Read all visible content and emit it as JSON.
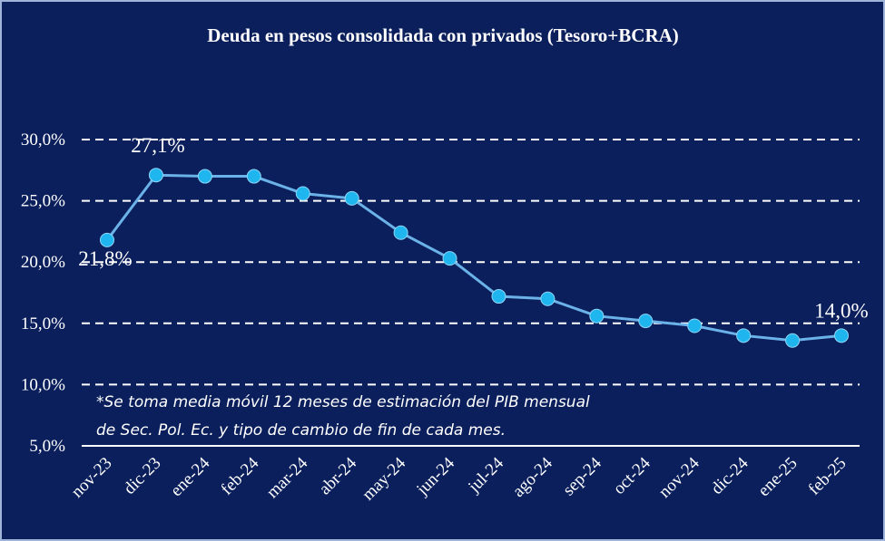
{
  "chart_data": {
    "type": "line",
    "title": "Deuda en pesos consolidada con privados (Tesoro+BCRA)",
    "categories": [
      "nov-23",
      "dic-23",
      "ene-24",
      "feb-24",
      "mar-24",
      "abr-24",
      "may-24",
      "jun-24",
      "jul-24",
      "ago-24",
      "sep-24",
      "oct-24",
      "nov-24",
      "dic-24",
      "ene-25",
      "feb-25"
    ],
    "series": [
      {
        "values": [
          21.8,
          27.1,
          27.0,
          27.0,
          25.6,
          25.2,
          22.4,
          20.3,
          17.2,
          17.0,
          15.6,
          15.2,
          14.8,
          14.0,
          13.6,
          14.0
        ]
      }
    ],
    "ylim": [
      5,
      30
    ],
    "yticks": [
      "5,0%",
      "10,0%",
      "15,0%",
      "20,0%",
      "25,0%",
      "30,0%"
    ],
    "data_labels": [
      {
        "index": 0,
        "text": "21,8%"
      },
      {
        "index": 1,
        "text": "27,1%"
      },
      {
        "index": 15,
        "text": "14,0%"
      }
    ],
    "grid": true,
    "line_color": "#6bb2e8",
    "marker_color": "#1fb5ef",
    "background": "#0b1f5c",
    "note": {
      "line1": "*Se toma media móvil 12 meses de estimación del PIB mensual",
      "line2": "de Sec. Pol. Ec. y tipo de cambio de fin de cada mes."
    }
  }
}
